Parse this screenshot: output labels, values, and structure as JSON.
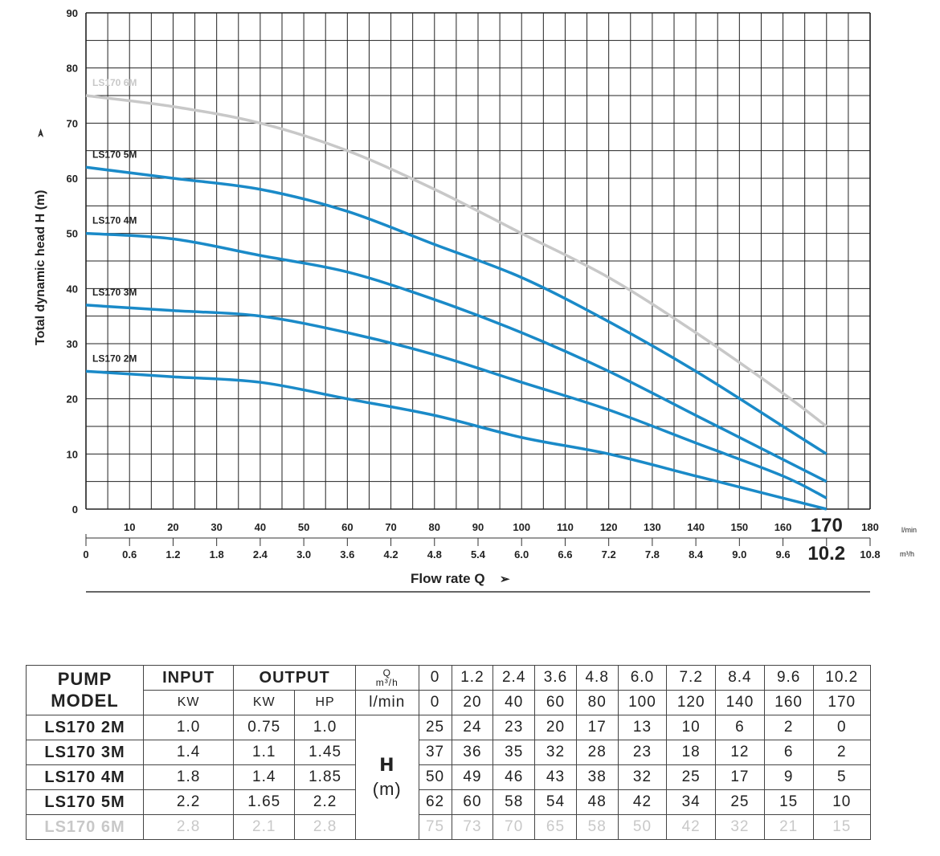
{
  "chart_data": {
    "type": "line",
    "ylabel": "Total dynamic head H (m)",
    "xlabel": "Flow rate Q",
    "ylim": [
      0,
      90
    ],
    "xlim": [
      0,
      180
    ],
    "yticks": [
      0,
      10,
      20,
      30,
      40,
      50,
      60,
      70,
      80,
      90
    ],
    "xticks_lmin": [
      "10",
      "20",
      "30",
      "40",
      "50",
      "60",
      "70",
      "80",
      "90",
      "100",
      "110",
      "120",
      "130",
      "140",
      "150",
      "160",
      "170",
      "180"
    ],
    "xticks_m3h": [
      "0",
      "0.6",
      "1.2",
      "1.8",
      "2.4",
      "3.0",
      "3.6",
      "4.2",
      "4.8",
      "5.4",
      "6.0",
      "6.6",
      "7.2",
      "7.8",
      "8.4",
      "9.0",
      "9.6",
      "10.2",
      "10.8"
    ],
    "unit_lmin": "l/min",
    "unit_m3h": "m³/h",
    "grid": true,
    "x": [
      0,
      20,
      40,
      60,
      80,
      100,
      120,
      140,
      160,
      170
    ],
    "series": [
      {
        "name": "LS170 6M",
        "color": "#c8c8c8",
        "values": [
          75,
          73,
          70,
          65,
          58,
          50,
          42,
          32,
          21,
          15
        ]
      },
      {
        "name": "LS170 5M",
        "color": "#1a8ac8",
        "values": [
          62,
          60,
          58,
          54,
          48,
          42,
          34,
          25,
          15,
          10
        ]
      },
      {
        "name": "LS170 4M",
        "color": "#1a8ac8",
        "values": [
          50,
          49,
          46,
          43,
          38,
          32,
          25,
          17,
          9,
          5
        ]
      },
      {
        "name": "LS170 3M",
        "color": "#1a8ac8",
        "values": [
          37,
          36,
          35,
          32,
          28,
          23,
          18,
          12,
          6,
          2
        ]
      },
      {
        "name": "LS170 2M",
        "color": "#1a8ac8",
        "values": [
          25,
          24,
          23,
          20,
          17,
          13,
          10,
          6,
          2,
          0
        ]
      }
    ]
  },
  "table": {
    "pump_model": [
      "PUMP",
      "MODEL"
    ],
    "input": "INPUT",
    "output": "OUTPUT",
    "q_label": "Q",
    "q_unit": "m³/h",
    "lmin": "l/min",
    "kw_in": "KW",
    "kw_out": "KW",
    "hp": "HP",
    "h": "H",
    "h_unit": "(m)",
    "q_m3h": [
      "0",
      "1.2",
      "2.4",
      "3.6",
      "4.8",
      "6.0",
      "7.2",
      "8.4",
      "9.6",
      "10.2"
    ],
    "q_lmin": [
      "0",
      "20",
      "40",
      "60",
      "80",
      "100",
      "120",
      "140",
      "160",
      "170"
    ],
    "rows": [
      {
        "model": "LS170 2M",
        "input_kw": "1.0",
        "output_kw": "0.75",
        "hp": "1.0",
        "h": [
          "25",
          "24",
          "23",
          "20",
          "17",
          "13",
          "10",
          "6",
          "2",
          "0"
        ]
      },
      {
        "model": "LS170 3M",
        "input_kw": "1.4",
        "output_kw": "1.1",
        "hp": "1.45",
        "h": [
          "37",
          "36",
          "35",
          "32",
          "28",
          "23",
          "18",
          "12",
          "6",
          "2"
        ]
      },
      {
        "model": "LS170 4M",
        "input_kw": "1.8",
        "output_kw": "1.4",
        "hp": "1.85",
        "h": [
          "50",
          "49",
          "46",
          "43",
          "38",
          "32",
          "25",
          "17",
          "9",
          "5"
        ]
      },
      {
        "model": "LS170 5M",
        "input_kw": "2.2",
        "output_kw": "1.65",
        "hp": "2.2",
        "h": [
          "62",
          "60",
          "58",
          "54",
          "48",
          "42",
          "34",
          "25",
          "15",
          "10"
        ]
      },
      {
        "model": "LS170 6M",
        "input_kw": "2.8",
        "output_kw": "2.1",
        "hp": "2.8",
        "h": [
          "75",
          "73",
          "70",
          "65",
          "58",
          "50",
          "42",
          "32",
          "21",
          "15"
        ]
      }
    ]
  }
}
